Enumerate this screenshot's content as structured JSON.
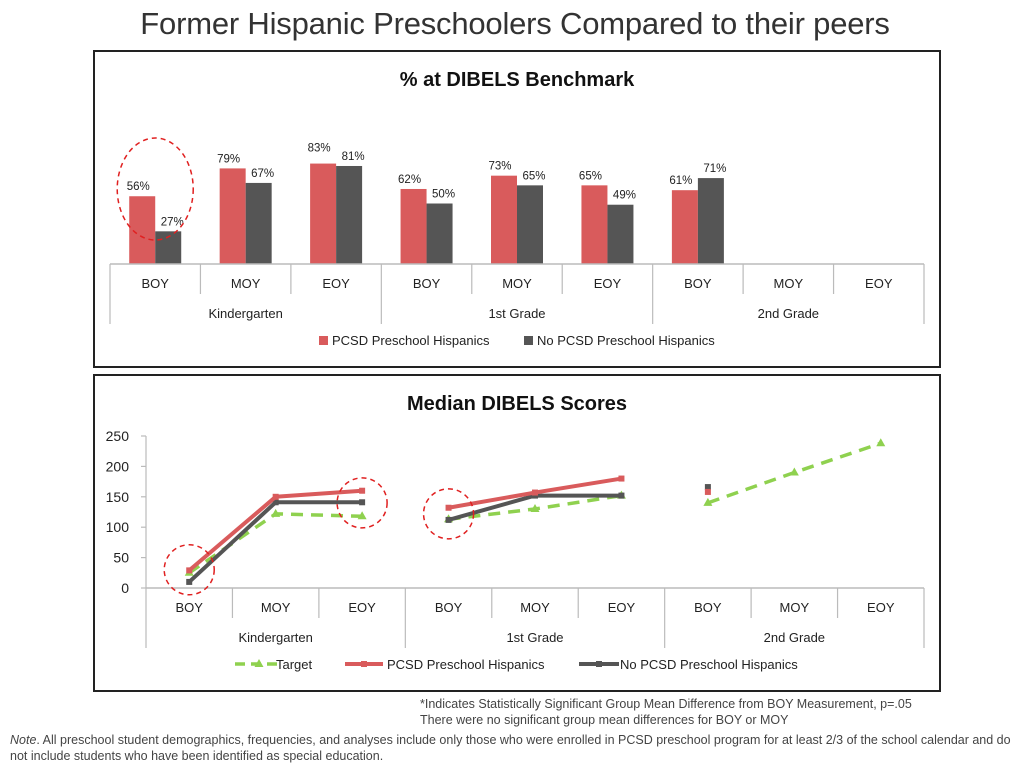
{
  "page": {
    "title": "Former Hispanic Preschoolers Compared to their peers",
    "footnote_1": "*Indicates Statistically Significant Group Mean Difference from BOY Measurement, p=.05",
    "footnote_2": "There were no significant group mean differences for BOY or MOY",
    "note_label": "Note",
    "note_text": ". All preschool student demographics, frequencies, and analyses include only those who were enrolled in PCSD preschool program for at least 2/3 of the school calendar and do not include students who have been identified as special education."
  },
  "colors": {
    "pcsd": "#d95b5c",
    "no_pcsd": "#555555",
    "target": "#8fd14f",
    "circle": "#e02020"
  },
  "chart_data": [
    {
      "type": "bar",
      "title": "% at DIBELS Benchmark",
      "categories": [
        "BOY",
        "MOY",
        "EOY",
        "BOY",
        "MOY",
        "EOY",
        "BOY",
        "MOY",
        "EOY"
      ],
      "groups": [
        "Kindergarten",
        "1st Grade",
        "2nd Grade"
      ],
      "series": [
        {
          "name": "PCSD Preschool Hispanics",
          "values": [
            56,
            79,
            83,
            62,
            73,
            65,
            61,
            null,
            null
          ],
          "labels": [
            "56%",
            "79%",
            "83%",
            "62%",
            "73%",
            "65%",
            "61%",
            "",
            ""
          ]
        },
        {
          "name": "No PCSD Preschool Hispanics",
          "values": [
            27,
            67,
            81,
            50,
            65,
            49,
            71,
            null,
            null
          ],
          "labels": [
            "27%",
            "67%",
            "81%",
            "50%",
            "65%",
            "49%",
            "71%",
            "",
            ""
          ]
        }
      ],
      "ylim": [
        0,
        100
      ],
      "legend": "bottom",
      "highlighted_categories": [
        0
      ]
    },
    {
      "type": "line",
      "title": "Median DIBELS Scores",
      "categories": [
        "BOY",
        "MOY",
        "EOY",
        "BOY",
        "MOY",
        "EOY",
        "BOY",
        "MOY",
        "EOY"
      ],
      "groups": [
        "Kindergarten",
        "1st Grade",
        "2nd Grade"
      ],
      "ylim": [
        0,
        250
      ],
      "yticks": [
        "0",
        "50",
        "100",
        "150",
        "200",
        "250"
      ],
      "series": [
        {
          "name": "Target",
          "values": [
            25,
            122,
            118,
            113,
            130,
            152,
            140,
            190,
            238
          ]
        },
        {
          "name": "PCSD Preschool Hispanics",
          "values": [
            29,
            150,
            160,
            132,
            157,
            180,
            158,
            null,
            null
          ]
        },
        {
          "name": "No PCSD Preschool Hispanics",
          "values": [
            10,
            141,
            141,
            112,
            152,
            152,
            166,
            null,
            null
          ]
        }
      ],
      "legend": "bottom",
      "highlighted_categories": [
        0,
        2,
        3
      ]
    }
  ]
}
